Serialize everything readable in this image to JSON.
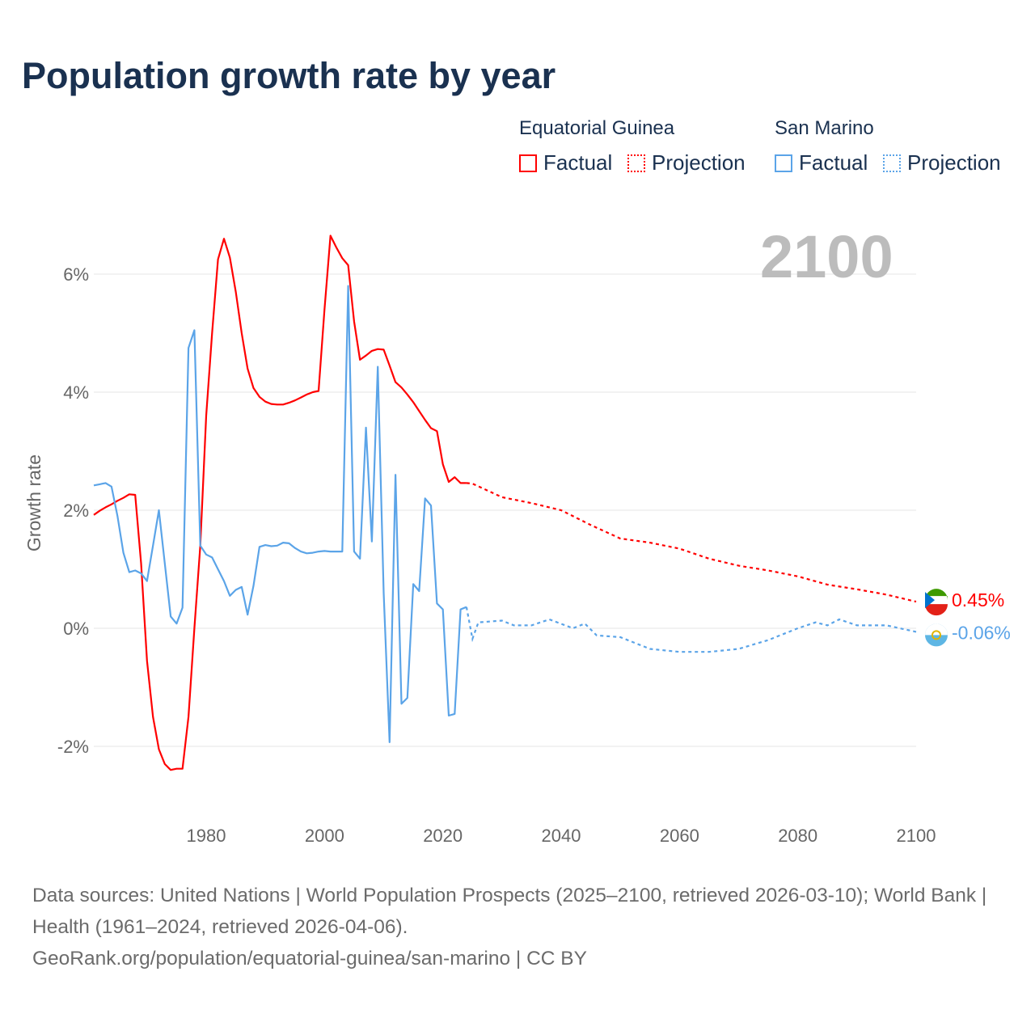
{
  "title": "Population growth rate by year",
  "legend": {
    "groups": [
      {
        "name": "Equatorial Guinea",
        "factual": "Factual",
        "projection": "Projection",
        "color": "#ff0000"
      },
      {
        "name": "San Marino",
        "factual": "Factual",
        "projection": "Projection",
        "color": "#5ba4e8"
      }
    ]
  },
  "current_year_label": "2100",
  "footer": {
    "sources": "Data sources: United Nations | World Population Prospects (2025–2100, retrieved 2026-03-10); World Bank | Health (1961–2024, retrieved 2026-04-06).",
    "link": "GeoRank.org/population/equatorial-guinea/san-marino | CC BY"
  },
  "chart_data": {
    "type": "line",
    "title": "Population growth rate by year",
    "ylabel": "Growth rate",
    "xlabel": "",
    "xlim": [
      1961,
      2100
    ],
    "ylim": [
      -3.2,
      7.5
    ],
    "x_ticks": [
      1980,
      2000,
      2020,
      2040,
      2060,
      2080,
      2100
    ],
    "x_tick_labels": [
      "1980",
      "2000",
      "2020",
      "2040",
      "2060",
      "2080",
      "2100"
    ],
    "y_ticks": [
      -2,
      0,
      2,
      4,
      6
    ],
    "y_tick_labels": [
      "-2%",
      "0%",
      "2%",
      "4%",
      "6%"
    ],
    "grid": true,
    "series": [
      {
        "name": "Equatorial Guinea",
        "color": "#ff0000",
        "end_label": "0.45%",
        "factual": {
          "x": [
            1961,
            1962,
            1963,
            1964,
            1965,
            1966,
            1967,
            1968,
            1969,
            1970,
            1971,
            1972,
            1973,
            1974,
            1975,
            1976,
            1977,
            1978,
            1979,
            1980,
            1981,
            1982,
            1983,
            1984,
            1985,
            1986,
            1987,
            1988,
            1989,
            1990,
            1991,
            1992,
            1993,
            1994,
            1995,
            1996,
            1997,
            1998,
            1999,
            2000,
            2001,
            2002,
            2003,
            2004,
            2005,
            2006,
            2007,
            2008,
            2009,
            2010,
            2011,
            2012,
            2013,
            2014,
            2015,
            2016,
            2017,
            2018,
            2019,
            2020,
            2021,
            2022,
            2023,
            2024
          ],
          "y": [
            1.92,
            1.99,
            2.05,
            2.1,
            2.16,
            2.21,
            2.27,
            2.26,
            1.1,
            -0.55,
            -1.5,
            -2.05,
            -2.3,
            -2.4,
            -2.38,
            -2.38,
            -1.5,
            0.0,
            1.4,
            3.6,
            5.0,
            6.25,
            6.6,
            6.28,
            5.7,
            5.0,
            4.4,
            4.07,
            3.92,
            3.84,
            3.8,
            3.79,
            3.79,
            3.82,
            3.86,
            3.91,
            3.96,
            4.0,
            4.02,
            5.4,
            6.65,
            6.45,
            6.27,
            6.15,
            5.2,
            4.55,
            4.62,
            4.7,
            4.73,
            4.72,
            4.45,
            4.17,
            4.08,
            3.96,
            3.83,
            3.68,
            3.53,
            3.39,
            3.34,
            2.78,
            2.48,
            2.56,
            2.46,
            2.46
          ]
        },
        "projection": {
          "x": [
            2024,
            2025,
            2030,
            2035,
            2040,
            2045,
            2050,
            2055,
            2060,
            2065,
            2070,
            2075,
            2080,
            2085,
            2090,
            2095,
            2100
          ],
          "y": [
            2.46,
            2.45,
            2.22,
            2.12,
            2.0,
            1.75,
            1.52,
            1.45,
            1.35,
            1.18,
            1.06,
            0.98,
            0.88,
            0.74,
            0.66,
            0.57,
            0.45
          ]
        }
      },
      {
        "name": "San Marino",
        "color": "#5ba4e8",
        "end_label": "-0.06%",
        "factual": {
          "x": [
            1961,
            1962,
            1963,
            1964,
            1965,
            1966,
            1967,
            1968,
            1969,
            1970,
            1971,
            1972,
            1973,
            1974,
            1975,
            1976,
            1977,
            1978,
            1979,
            1980,
            1981,
            1982,
            1983,
            1984,
            1985,
            1986,
            1987,
            1988,
            1989,
            1990,
            1991,
            1992,
            1993,
            1994,
            1995,
            1996,
            1997,
            1998,
            1999,
            2000,
            2001,
            2002,
            2003,
            2004,
            2005,
            2006,
            2007,
            2008,
            2009,
            2010,
            2011,
            2012,
            2013,
            2014,
            2015,
            2016,
            2017,
            2018,
            2019,
            2020,
            2021,
            2022,
            2023,
            2024
          ],
          "y": [
            2.42,
            2.44,
            2.46,
            2.4,
            1.9,
            1.28,
            0.95,
            0.98,
            0.93,
            0.8,
            1.4,
            2.0,
            1.1,
            0.2,
            0.08,
            0.35,
            4.75,
            5.05,
            1.4,
            1.25,
            1.2,
            1.0,
            0.8,
            0.55,
            0.65,
            0.7,
            0.23,
            0.72,
            1.38,
            1.41,
            1.39,
            1.4,
            1.45,
            1.44,
            1.36,
            1.3,
            1.27,
            1.28,
            1.3,
            1.31,
            1.3,
            1.3,
            1.3,
            5.8,
            1.3,
            1.18,
            3.4,
            1.47,
            4.43,
            0.6,
            -1.93,
            2.6,
            -1.28,
            -1.18,
            0.75,
            0.63,
            2.2,
            2.08,
            0.42,
            0.32,
            -1.48,
            -1.45,
            0.32,
            0.36
          ]
        },
        "projection": {
          "x": [
            2024,
            2025,
            2026,
            2030,
            2032,
            2035,
            2038,
            2042,
            2044,
            2046,
            2050,
            2055,
            2060,
            2065,
            2070,
            2075,
            2080,
            2083,
            2085,
            2087,
            2090,
            2095,
            2100
          ],
          "y": [
            0.36,
            -0.18,
            0.1,
            0.13,
            0.05,
            0.05,
            0.15,
            0.0,
            0.08,
            -0.12,
            -0.15,
            -0.35,
            -0.4,
            -0.4,
            -0.35,
            -0.2,
            0.0,
            0.1,
            0.05,
            0.15,
            0.05,
            0.05,
            -0.06
          ]
        }
      }
    ]
  }
}
